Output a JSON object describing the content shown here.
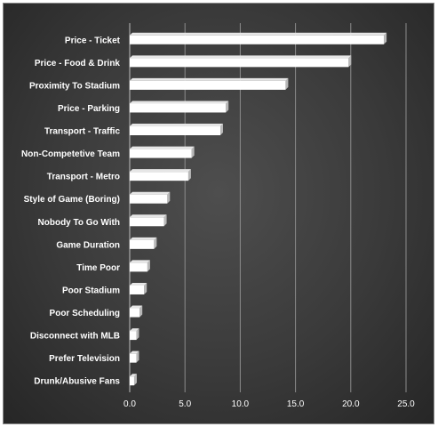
{
  "chart_data": {
    "type": "bar",
    "orientation": "horizontal",
    "categories": [
      "Price - Ticket",
      "Price - Food & Drink",
      "Proximity To Stadium",
      "Price - Parking",
      "Transport - Traffic",
      "Non-Competetive Team",
      "Transport - Metro",
      "Style of Game (Boring)",
      "Nobody To Go With",
      "Game Duration",
      "Time Poor",
      "Poor Stadium",
      "Poor Scheduling",
      "Disconnect with MLB",
      "Prefer Television",
      "Drunk/Abusive Fans"
    ],
    "values": [
      23.0,
      19.8,
      14.1,
      8.7,
      8.2,
      5.6,
      5.3,
      3.4,
      3.1,
      2.2,
      1.6,
      1.3,
      0.9,
      0.6,
      0.6,
      0.4
    ],
    "xlim": [
      0,
      25
    ],
    "xticks": [
      "0.0",
      "5.0",
      "10.0",
      "15.0",
      "20.0",
      "25.0"
    ],
    "grid": "vertical",
    "legend": "none",
    "colors": {
      "bar": "#ffffff",
      "bar_shadow": "#b8b8b8",
      "label": "#ffffff",
      "grid": "#8c8c8c",
      "background": "#3a3a3a"
    }
  }
}
